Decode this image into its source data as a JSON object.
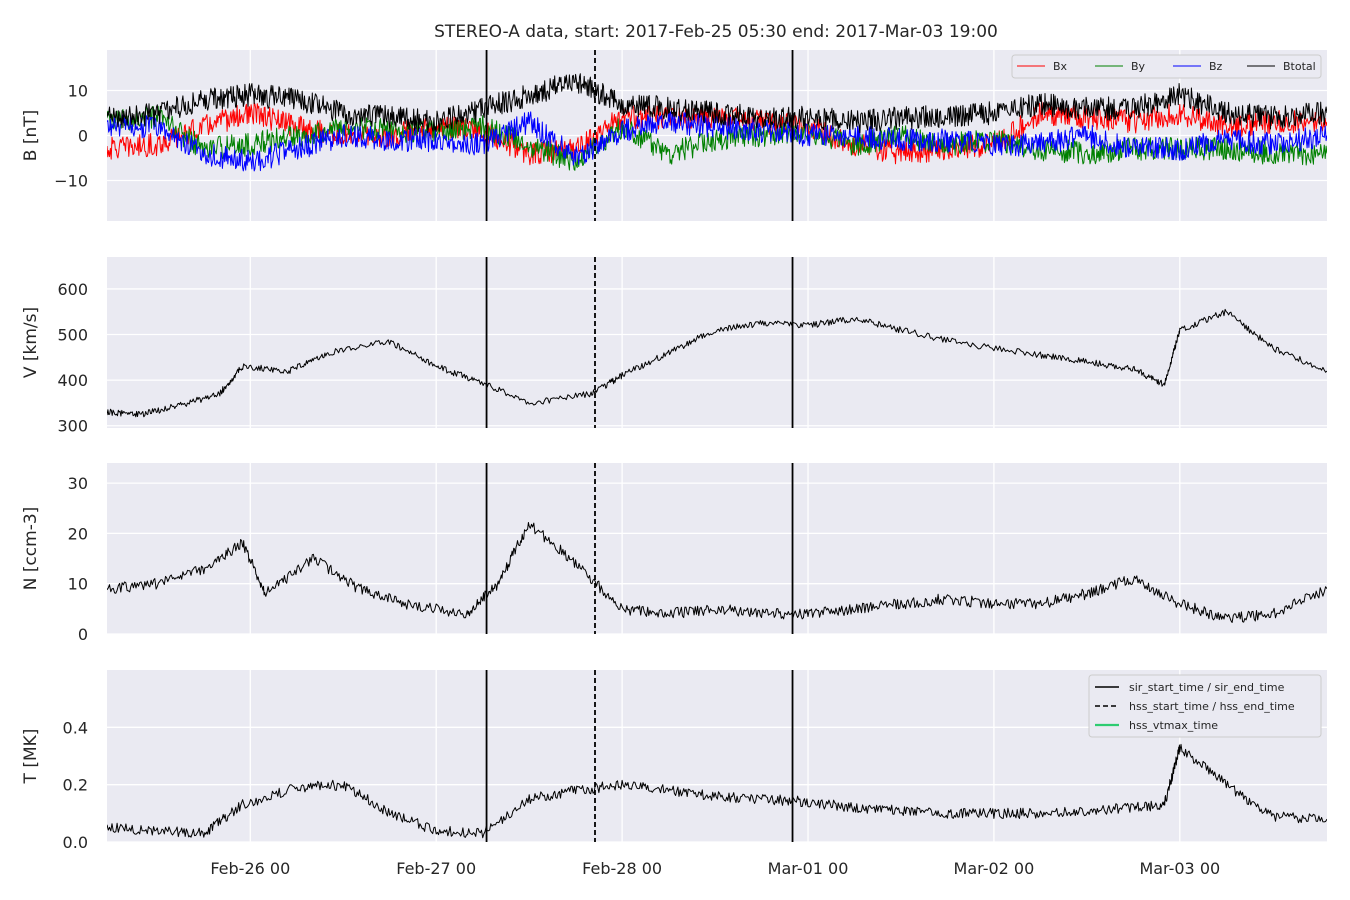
{
  "chart_data": {
    "type": "line",
    "title": "STEREO-A data, start: 2017-Feb-25 05:30  end: 2017-Mar-03 19:00",
    "start": "2017-02-25T05:30",
    "end": "2017-03-03T19:00",
    "x_ticks": [
      "Feb-26 00",
      "Feb-27 00",
      "Feb-28 00",
      "Mar-01 00",
      "Mar-02 00",
      "Mar-03 00"
    ],
    "x_tick_times": [
      "2017-02-26T00:00",
      "2017-02-27T00:00",
      "2017-02-28T00:00",
      "2017-03-01T00:00",
      "2017-03-02T00:00",
      "2017-03-03T00:00"
    ],
    "grid": true,
    "event_lines": {
      "sir_start_time": "2017-02-27T06:30",
      "hss_start_time": "2017-02-27T20:30",
      "sir_end_time": "2017-02-28T22:00"
    },
    "panels": [
      {
        "id": "B",
        "ylabel": "B [nT]",
        "ylim": [
          -19,
          19
        ],
        "yticks": [
          -10,
          0,
          10
        ],
        "ytick_labels": [
          "−10",
          "0",
          "10"
        ],
        "legend_position": "top-right",
        "series": [
          {
            "name": "Bx",
            "color": "#ff0000",
            "x": [
              "2017-02-25T05:30",
              "2017-02-25T12:00",
              "2017-02-25T18:00",
              "2017-02-26T00:00",
              "2017-02-26T06:00",
              "2017-02-26T12:00",
              "2017-02-26T18:00",
              "2017-02-27T00:00",
              "2017-02-27T06:00",
              "2017-02-27T12:00",
              "2017-02-27T18:00",
              "2017-02-28T00:00",
              "2017-02-28T06:00",
              "2017-02-28T12:00",
              "2017-02-28T18:00",
              "2017-03-01T00:00",
              "2017-03-01T06:00",
              "2017-03-01T12:00",
              "2017-03-01T18:00",
              "2017-03-02T00:00",
              "2017-03-02T06:00",
              "2017-03-02T12:00",
              "2017-03-02T18:00",
              "2017-03-03T00:00",
              "2017-03-03T06:00",
              "2017-03-03T12:00",
              "2017-03-03T19:00"
            ],
            "values": [
              -3,
              -2,
              2,
              5,
              2,
              0,
              0,
              2,
              1,
              -4,
              -3,
              4,
              4,
              4,
              3,
              2,
              -2,
              -4,
              -3,
              -2,
              5,
              4,
              3,
              5,
              2,
              3,
              3
            ]
          },
          {
            "name": "By",
            "color": "#008000",
            "x": [
              "2017-02-25T05:30",
              "2017-02-25T12:00",
              "2017-02-25T18:00",
              "2017-02-26T00:00",
              "2017-02-26T06:00",
              "2017-02-26T12:00",
              "2017-02-26T18:00",
              "2017-02-27T00:00",
              "2017-02-27T06:00",
              "2017-02-27T12:00",
              "2017-02-27T18:00",
              "2017-02-28T00:00",
              "2017-02-28T06:00",
              "2017-02-28T12:00",
              "2017-02-28T18:00",
              "2017-03-01T00:00",
              "2017-03-01T06:00",
              "2017-03-01T12:00",
              "2017-03-01T18:00",
              "2017-03-02T00:00",
              "2017-03-02T06:00",
              "2017-03-02T12:00",
              "2017-03-02T18:00",
              "2017-03-03T00:00",
              "2017-03-03T06:00",
              "2017-03-03T12:00",
              "2017-03-03T19:00"
            ],
            "values": [
              3,
              4,
              -3,
              -2,
              0,
              2,
              1,
              1,
              2,
              -2,
              -6,
              2,
              -4,
              -1,
              0,
              1,
              -2,
              0,
              -2,
              -1,
              -3,
              -4,
              -3,
              -3,
              -3,
              -4,
              -4
            ]
          },
          {
            "name": "Bz",
            "color": "#0000ff",
            "x": [
              "2017-02-25T05:30",
              "2017-02-25T12:00",
              "2017-02-25T18:00",
              "2017-02-26T00:00",
              "2017-02-26T06:00",
              "2017-02-26T12:00",
              "2017-02-26T18:00",
              "2017-02-27T00:00",
              "2017-02-27T06:00",
              "2017-02-27T12:00",
              "2017-02-27T18:00",
              "2017-02-28T00:00",
              "2017-02-28T06:00",
              "2017-02-28T12:00",
              "2017-02-28T18:00",
              "2017-03-01T00:00",
              "2017-03-01T06:00",
              "2017-03-01T12:00",
              "2017-03-01T18:00",
              "2017-03-02T00:00",
              "2017-03-02T06:00",
              "2017-03-02T12:00",
              "2017-03-02T18:00",
              "2017-03-03T00:00",
              "2017-03-03T06:00",
              "2017-03-03T12:00",
              "2017-03-03T19:00"
            ],
            "values": [
              2,
              2,
              -4,
              -6,
              -3,
              0,
              -1,
              -1,
              -2,
              3,
              -5,
              1,
              3,
              2,
              1,
              0,
              0,
              -1,
              -1,
              -2,
              -2,
              0,
              -3,
              -3,
              -1,
              -2,
              0
            ]
          },
          {
            "name": "Btotal",
            "color": "#000000",
            "x": [
              "2017-02-25T05:30",
              "2017-02-25T12:00",
              "2017-02-25T18:00",
              "2017-02-26T00:00",
              "2017-02-26T06:00",
              "2017-02-26T12:00",
              "2017-02-26T18:00",
              "2017-02-27T00:00",
              "2017-02-27T06:00",
              "2017-02-27T12:00",
              "2017-02-27T18:00",
              "2017-02-28T00:00",
              "2017-02-28T06:00",
              "2017-02-28T12:00",
              "2017-02-28T18:00",
              "2017-03-01T00:00",
              "2017-03-01T06:00",
              "2017-03-01T12:00",
              "2017-03-01T18:00",
              "2017-03-02T00:00",
              "2017-03-02T06:00",
              "2017-03-02T12:00",
              "2017-03-02T18:00",
              "2017-03-03T00:00",
              "2017-03-03T06:00",
              "2017-03-03T12:00",
              "2017-03-03T19:00"
            ],
            "values": [
              4,
              5,
              8,
              9,
              8,
              5,
              4,
              3,
              6,
              9,
              12,
              7,
              6,
              5,
              4,
              4,
              3,
              4,
              4,
              5,
              7,
              6,
              6,
              9,
              5,
              4,
              5
            ]
          }
        ]
      },
      {
        "id": "V",
        "ylabel": "V [km/s]",
        "ylim": [
          295,
          670
        ],
        "yticks": [
          300,
          400,
          500,
          600
        ],
        "ytick_labels": [
          "300",
          "400",
          "500",
          "600"
        ],
        "series": [
          {
            "name": "",
            "color": "#000000",
            "x": [
              "2017-02-25T05:30",
              "2017-02-25T10:00",
              "2017-02-25T15:00",
              "2017-02-25T20:00",
              "2017-02-25T23:00",
              "2017-02-26T05:00",
              "2017-02-26T10:00",
              "2017-02-26T18:00",
              "2017-02-27T00:00",
              "2017-02-27T05:00",
              "2017-02-27T12:00",
              "2017-02-27T20:00",
              "2017-02-28T00:00",
              "2017-02-28T06:00",
              "2017-02-28T12:00",
              "2017-02-28T18:00",
              "2017-03-01T00:00",
              "2017-03-01T06:00",
              "2017-03-01T12:00",
              "2017-03-01T20:00",
              "2017-03-02T06:00",
              "2017-03-02T12:00",
              "2017-03-02T18:00",
              "2017-03-02T22:00",
              "2017-03-03T00:00",
              "2017-03-03T06:00",
              "2017-03-03T12:00",
              "2017-03-03T19:00"
            ],
            "values": [
              330,
              325,
              345,
              370,
              430,
              420,
              460,
              485,
              430,
              400,
              350,
              370,
              410,
              460,
              510,
              525,
              520,
              535,
              510,
              480,
              455,
              440,
              425,
              390,
              510,
              550,
              470,
              420
            ]
          }
        ]
      },
      {
        "id": "N",
        "ylabel": "N [ccm-3]",
        "ylim": [
          0,
          34
        ],
        "yticks": [
          0,
          10,
          20,
          30
        ],
        "ytick_labels": [
          "0",
          "10",
          "20",
          "30"
        ],
        "series": [
          {
            "name": "",
            "color": "#000000",
            "x": [
              "2017-02-25T05:30",
              "2017-02-25T12:00",
              "2017-02-25T18:00",
              "2017-02-25T23:00",
              "2017-02-26T02:00",
              "2017-02-26T08:00",
              "2017-02-26T14:00",
              "2017-02-26T20:00",
              "2017-02-27T04:00",
              "2017-02-27T08:00",
              "2017-02-27T12:00",
              "2017-02-27T18:00",
              "2017-02-28T00:00",
              "2017-02-28T06:00",
              "2017-02-28T12:00",
              "2017-02-28T18:00",
              "2017-03-01T00:00",
              "2017-03-01T06:00",
              "2017-03-01T12:00",
              "2017-03-01T18:00",
              "2017-03-02T00:00",
              "2017-03-02T06:00",
              "2017-03-02T12:00",
              "2017-03-02T18:00",
              "2017-03-03T00:00",
              "2017-03-03T06:00",
              "2017-03-03T12:00",
              "2017-03-03T19:00"
            ],
            "values": [
              9,
              10,
              13,
              18,
              8,
              15,
              9,
              6,
              4,
              10,
              22,
              14,
              5,
              4,
              5,
              4,
              4,
              5,
              6,
              7,
              6,
              6,
              8,
              11,
              6,
              3,
              4,
              9
            ]
          }
        ]
      },
      {
        "id": "T",
        "ylabel": "T [MK]",
        "ylim": [
          0,
          0.6
        ],
        "yticks": [
          0.0,
          0.2,
          0.4
        ],
        "ytick_labels": [
          "0.0",
          "0.2",
          "0.4"
        ],
        "legend_position": "top-right",
        "legend": [
          {
            "label": "sir_start_time / sir_end_time",
            "color": "#000000",
            "style": "solid"
          },
          {
            "label": "hss_start_time / hss_end_time",
            "color": "#000000",
            "style": "dashed"
          },
          {
            "label": "hss_vtmax_time",
            "color": "#2ecc71",
            "style": "solid"
          }
        ],
        "series": [
          {
            "name": "",
            "color": "#000000",
            "x": [
              "2017-02-25T05:30",
              "2017-02-25T12:00",
              "2017-02-25T18:00",
              "2017-02-25T23:00",
              "2017-02-26T06:00",
              "2017-02-26T12:00",
              "2017-02-26T18:00",
              "2017-02-27T00:00",
              "2017-02-27T06:00",
              "2017-02-27T12:00",
              "2017-02-27T18:00",
              "2017-02-28T00:00",
              "2017-02-28T06:00",
              "2017-02-28T12:00",
              "2017-02-28T18:00",
              "2017-03-01T00:00",
              "2017-03-01T06:00",
              "2017-03-01T12:00",
              "2017-03-01T18:00",
              "2017-03-02T00:00",
              "2017-03-02T06:00",
              "2017-03-02T12:00",
              "2017-03-02T18:00",
              "2017-03-02T22:00",
              "2017-03-03T00:00",
              "2017-03-03T06:00",
              "2017-03-03T12:00",
              "2017-03-03T19:00"
            ],
            "values": [
              0.05,
              0.04,
              0.03,
              0.13,
              0.19,
              0.2,
              0.1,
              0.04,
              0.03,
              0.15,
              0.18,
              0.2,
              0.18,
              0.16,
              0.15,
              0.14,
              0.12,
              0.11,
              0.1,
              0.1,
              0.1,
              0.11,
              0.12,
              0.13,
              0.33,
              0.2,
              0.09,
              0.08
            ]
          }
        ]
      }
    ]
  }
}
